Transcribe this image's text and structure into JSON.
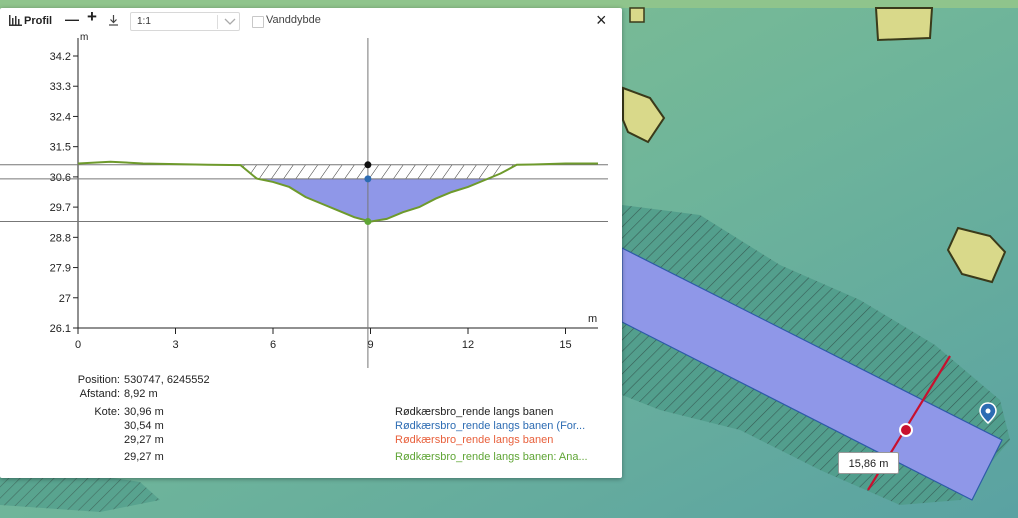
{
  "toolbar": {
    "title": "Profil",
    "zoom_out_label": "—",
    "zoom_in_label": "+",
    "download_icon": "download-icon",
    "scale_value": "1:1",
    "water_depth_label": "Vanddybde",
    "water_depth_checked": false,
    "close_label": "×"
  },
  "chart_data": {
    "type": "area",
    "ylabel": "m",
    "xlabel": "m",
    "xlim": [
      0,
      16
    ],
    "ylim": [
      26.1,
      34.2
    ],
    "x_ticks": [
      "0",
      "3",
      "6",
      "9",
      "12",
      "15"
    ],
    "y_ticks": [
      "34.2",
      "33.3",
      "32.4",
      "31.5",
      "30.6",
      "29.7",
      "28.8",
      "27.9",
      "27",
      "26.1"
    ],
    "cursor_x": 8.92,
    "levels": [
      30.96,
      30.54,
      29.27
    ],
    "terrain_profile": {
      "x": [
        0,
        1,
        2,
        3,
        4,
        5,
        5.5,
        6,
        6.5,
        7,
        7.5,
        8,
        8.5,
        9,
        9.5,
        10,
        10.5,
        11,
        11.5,
        12,
        12.5,
        13,
        13.5,
        14,
        15,
        16
      ],
      "y": [
        31.0,
        31.05,
        31.0,
        30.98,
        30.96,
        30.95,
        30.55,
        30.45,
        30.3,
        30.0,
        29.8,
        29.6,
        29.4,
        29.27,
        29.35,
        29.55,
        29.7,
        29.95,
        30.15,
        30.3,
        30.5,
        30.7,
        30.96,
        30.97,
        31.0,
        31.0
      ]
    }
  },
  "colors": {
    "water_fill": "#8f97e8",
    "hatch": "#333333",
    "terrain_line": "#6e9a2c",
    "point_black": "#111111",
    "point_blue": "#2d6cb3",
    "point_green": "#5fa535",
    "legend_black": "#222222",
    "legend_blue": "#2d6cb3",
    "legend_red": "#e8603c",
    "legend_green": "#5fa535",
    "map_base": "#6fb59a",
    "building": "#d9d98a",
    "channel": "#8f97e8",
    "profile_line": "#c8102e"
  },
  "info": {
    "position_label": "Position:",
    "position_value": "530747, 6245552",
    "distance_label": "Afstand:",
    "distance_value": "8,92 m",
    "elevation_label": "Kote:",
    "elevation_values": [
      "30,96 m",
      "30,54 m",
      "29,27 m",
      "29,27 m"
    ]
  },
  "legend": [
    {
      "text": "Rødkærsbro_rende langs banen",
      "color": "#222222"
    },
    {
      "text": "Rødkærsbro_rende langs banen (For...",
      "color": "#2d6cb3"
    },
    {
      "text": "Rødkærsbro_rende langs banen",
      "color": "#e8603c"
    },
    {
      "text": "Rødkærsbro_rende langs banen: Ana...",
      "color": "#5fa535"
    }
  ],
  "map": {
    "tooltip_distance": "15,86 m",
    "marker_icon": "location-pin-icon"
  }
}
